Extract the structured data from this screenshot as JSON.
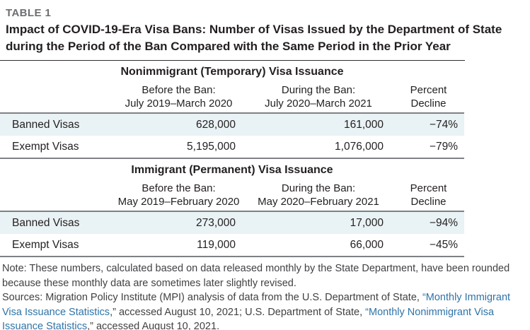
{
  "colors": {
    "accent_row_bg": "#e9f2f4",
    "rule_gray": "#7f8184",
    "title_rule": "#312c2d",
    "eyebrow_gray": "#6d6e71",
    "text_black": "#231f20",
    "note_gray": "#414144",
    "link_color": "#2e74a8"
  },
  "header": {
    "eyebrow": "TABLE 1",
    "title_line1": "Impact of COVID-19-Era Visa Bans: Number of Visas Issued by the Department of State",
    "title_line2": "during the Period of the Ban Compared with the Same Period in the Prior Year"
  },
  "sections": [
    {
      "heading": "Nonimmigrant (Temporary) Visa Issuance",
      "columns": [
        {
          "line1": "Before the Ban:",
          "line2": "July 2019–March 2020"
        },
        {
          "line1": "During the Ban:",
          "line2": "July 2020–March 2021"
        },
        {
          "line1": "Percent",
          "line2": "Decline"
        }
      ],
      "rows": [
        {
          "label": "Banned Visas",
          "before": "628,000",
          "during": "161,000",
          "decline": "−74%"
        },
        {
          "label": "Exempt Visas",
          "before": "5,195,000",
          "during": "1,076,000",
          "decline": "−79%"
        }
      ]
    },
    {
      "heading": "Immigrant (Permanent) Visa Issuance",
      "columns": [
        {
          "line1": "Before the Ban:",
          "line2": "May 2019–February 2020"
        },
        {
          "line1": "During the Ban:",
          "line2": "May 2020–February 2021"
        },
        {
          "line1": "Percent",
          "line2": "Decline"
        }
      ],
      "rows": [
        {
          "label": "Banned Visas",
          "before": "273,000",
          "during": "17,000",
          "decline": "−94%"
        },
        {
          "label": "Exempt Visas",
          "before": "119,000",
          "during": "66,000",
          "decline": "−45%"
        }
      ]
    }
  ],
  "notes": {
    "note": "Note: These numbers, calculated based on data released monthly by the State Department, have been rounded because these monthly data are sometimes later slightly revised.",
    "sources_segments": [
      {
        "text": "Sources: Migration Policy Institute (MPI) analysis of data from the U.S. Department of State, "
      },
      {
        "text": "“Monthly Immigrant Visa Issuance Statistics"
      },
      {
        "text": ",” accessed August 10, 2021; U.S. Department of State, "
      },
      {
        "text": "“Monthly Nonimmigrant Visa Issuance Statistics"
      },
      {
        "text": ",” accessed August 10, 2021."
      }
    ]
  },
  "chart_data": {
    "type": "table",
    "title": "Impact of COVID-19-Era Visa Bans: Number of Visas Issued by the Department of State during the Period of the Ban Compared with the Same Period in the Prior Year",
    "tables": [
      {
        "section": "Nonimmigrant (Temporary) Visa Issuance",
        "columns": [
          "",
          "Before the Ban: July 2019–March 2020",
          "During the Ban: July 2020–March 2021",
          "Percent Decline"
        ],
        "rows": [
          [
            "Banned Visas",
            628000,
            161000,
            -74
          ],
          [
            "Exempt Visas",
            5195000,
            1076000,
            -79
          ]
        ]
      },
      {
        "section": "Immigrant (Permanent) Visa Issuance",
        "columns": [
          "",
          "Before the Ban: May 2019–February 2020",
          "During the Ban: May 2020–February 2021",
          "Percent Decline"
        ],
        "rows": [
          [
            "Banned Visas",
            273000,
            17000,
            -94
          ],
          [
            "Exempt Visas",
            119000,
            66000,
            -45
          ]
        ]
      }
    ]
  }
}
